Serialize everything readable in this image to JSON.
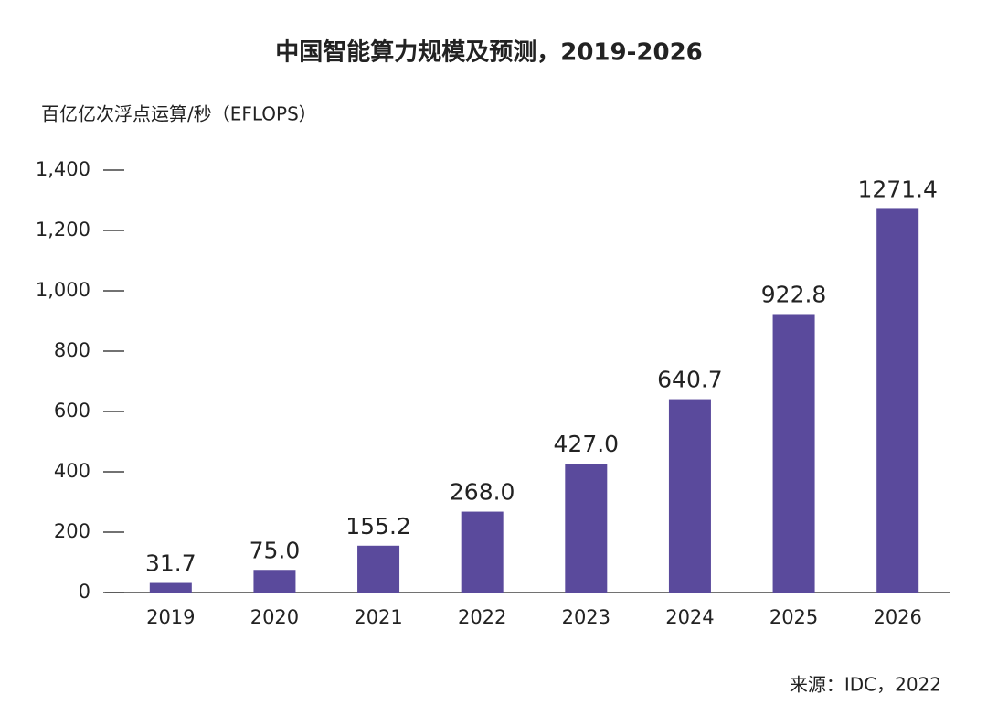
{
  "chart_data": {
    "type": "bar",
    "title": "中国智能算力规模及预测，2019-2026",
    "y_label": "百亿亿次浮点运算/秒（EFLOPS）",
    "source": "来源：IDC，2022",
    "categories": [
      "2019",
      "2020",
      "2021",
      "2022",
      "2023",
      "2024",
      "2025",
      "2026"
    ],
    "values": [
      31.7,
      75.0,
      155.2,
      268.0,
      427.0,
      640.7,
      922.8,
      1271.4
    ],
    "value_labels": [
      "31.7",
      "75.0",
      "155.2",
      "268.0",
      "427.0",
      "640.7",
      "922.8",
      "1271.4"
    ],
    "color": "#5a4a9c",
    "ylim": [
      0,
      1400
    ],
    "yticks": [
      0,
      200,
      400,
      600,
      800,
      {
        "value": 1000,
        "label": "1,000"
      },
      {
        "value": 1200,
        "label": "1,200"
      },
      {
        "value": 1400,
        "label": "1,400"
      }
    ],
    "grid": false
  }
}
